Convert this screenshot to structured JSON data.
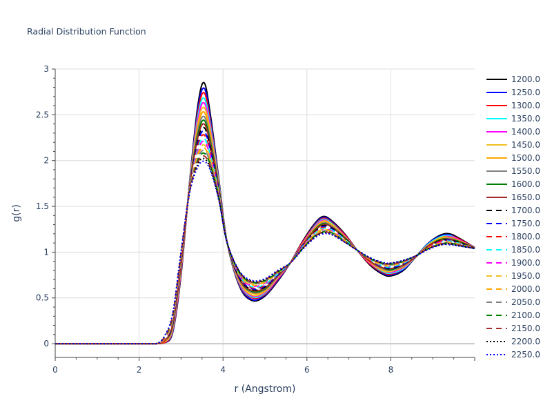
{
  "chart_data": {
    "type": "line",
    "title": "Radial Distribution Function",
    "xlabel": "r (Angstrom)",
    "ylabel": "g(r)",
    "xlim": [
      0,
      10
    ],
    "ylim": [
      -0.15,
      3
    ],
    "x_ticks": [
      0,
      2,
      4,
      6,
      8
    ],
    "x_tick_labels": [
      "0",
      "2",
      "4",
      "6",
      "8"
    ],
    "y_ticks": [
      0,
      0.5,
      1,
      1.5,
      2,
      2.5,
      3
    ],
    "y_tick_labels": [
      "0",
      "0.5",
      "1",
      "1.5",
      "2",
      "2.5",
      "3"
    ],
    "grid": true,
    "legend_position": "right",
    "x": [
      0,
      0.5,
      1,
      1.5,
      2,
      2.4,
      2.6,
      2.8,
      3.0,
      3.2,
      3.4,
      3.55,
      3.7,
      3.9,
      4.1,
      4.4,
      4.7,
      5.0,
      5.3,
      5.6,
      5.9,
      6.2,
      6.4,
      6.6,
      6.9,
      7.2,
      7.5,
      7.8,
      8.0,
      8.3,
      8.6,
      8.9,
      9.2,
      9.4,
      9.6,
      10.0
    ],
    "series": [
      {
        "name": "1200.0",
        "color": "#000000",
        "dash": "solid",
        "values": [
          0,
          0,
          0,
          0,
          0,
          0,
          0.01,
          0.12,
          0.75,
          1.75,
          2.6,
          2.85,
          2.5,
          1.8,
          1.1,
          0.62,
          0.47,
          0.52,
          0.68,
          0.88,
          1.12,
          1.32,
          1.39,
          1.34,
          1.2,
          1.02,
          0.86,
          0.76,
          0.74,
          0.8,
          0.95,
          1.1,
          1.19,
          1.2,
          1.16,
          1.05
        ]
      },
      {
        "name": "1250.0",
        "color": "#0000ff",
        "dash": "solid",
        "values": [
          0,
          0,
          0,
          0,
          0,
          0,
          0.01,
          0.13,
          0.77,
          1.74,
          2.56,
          2.79,
          2.46,
          1.78,
          1.1,
          0.63,
          0.48,
          0.53,
          0.69,
          0.88,
          1.11,
          1.31,
          1.38,
          1.33,
          1.19,
          1.02,
          0.87,
          0.77,
          0.75,
          0.81,
          0.95,
          1.1,
          1.18,
          1.19,
          1.15,
          1.05
        ]
      },
      {
        "name": "1300.0",
        "color": "#ff0000",
        "dash": "solid",
        "values": [
          0,
          0,
          0,
          0,
          0,
          0,
          0.01,
          0.14,
          0.78,
          1.73,
          2.52,
          2.74,
          2.42,
          1.77,
          1.1,
          0.64,
          0.5,
          0.54,
          0.7,
          0.88,
          1.11,
          1.3,
          1.37,
          1.32,
          1.19,
          1.02,
          0.87,
          0.78,
          0.76,
          0.82,
          0.95,
          1.09,
          1.17,
          1.18,
          1.15,
          1.05
        ]
      },
      {
        "name": "1350.0",
        "color": "#00ffff",
        "dash": "solid",
        "values": [
          0,
          0,
          0,
          0,
          0,
          0,
          0.02,
          0.15,
          0.8,
          1.73,
          2.48,
          2.68,
          2.38,
          1.76,
          1.1,
          0.65,
          0.51,
          0.55,
          0.71,
          0.88,
          1.1,
          1.29,
          1.36,
          1.31,
          1.18,
          1.02,
          0.88,
          0.79,
          0.77,
          0.82,
          0.95,
          1.09,
          1.17,
          1.18,
          1.14,
          1.05
        ]
      },
      {
        "name": "1400.0",
        "color": "#ff00ff",
        "dash": "solid",
        "values": [
          0,
          0,
          0,
          0,
          0,
          0,
          0.02,
          0.16,
          0.81,
          1.72,
          2.44,
          2.63,
          2.34,
          1.74,
          1.1,
          0.66,
          0.52,
          0.56,
          0.71,
          0.88,
          1.1,
          1.28,
          1.35,
          1.3,
          1.18,
          1.02,
          0.88,
          0.8,
          0.78,
          0.83,
          0.95,
          1.08,
          1.16,
          1.17,
          1.14,
          1.05
        ]
      },
      {
        "name": "1450.0",
        "color": "#f0c020",
        "dash": "solid",
        "values": [
          0,
          0,
          0,
          0,
          0,
          0,
          0.02,
          0.17,
          0.83,
          1.72,
          2.4,
          2.58,
          2.31,
          1.73,
          1.1,
          0.67,
          0.53,
          0.57,
          0.72,
          0.88,
          1.09,
          1.27,
          1.34,
          1.3,
          1.17,
          1.02,
          0.89,
          0.8,
          0.79,
          0.84,
          0.95,
          1.08,
          1.16,
          1.16,
          1.13,
          1.05
        ]
      },
      {
        "name": "1500.0",
        "color": "#ffa500",
        "dash": "solid",
        "values": [
          0,
          0,
          0,
          0,
          0,
          0,
          0.02,
          0.18,
          0.84,
          1.71,
          2.36,
          2.53,
          2.27,
          1.72,
          1.1,
          0.68,
          0.55,
          0.58,
          0.73,
          0.88,
          1.09,
          1.26,
          1.33,
          1.29,
          1.17,
          1.02,
          0.89,
          0.81,
          0.8,
          0.84,
          0.95,
          1.08,
          1.15,
          1.16,
          1.13,
          1.05
        ]
      },
      {
        "name": "1550.0",
        "color": "#808080",
        "dash": "solid",
        "values": [
          0,
          0,
          0,
          0,
          0,
          0,
          0.03,
          0.19,
          0.86,
          1.71,
          2.32,
          2.48,
          2.23,
          1.71,
          1.1,
          0.69,
          0.56,
          0.59,
          0.73,
          0.88,
          1.08,
          1.25,
          1.32,
          1.28,
          1.16,
          1.02,
          0.9,
          0.82,
          0.8,
          0.85,
          0.95,
          1.07,
          1.14,
          1.15,
          1.12,
          1.05
        ]
      },
      {
        "name": "1600.0",
        "color": "#008000",
        "dash": "solid",
        "values": [
          0,
          0,
          0,
          0,
          0,
          0,
          0.03,
          0.2,
          0.87,
          1.7,
          2.28,
          2.44,
          2.2,
          1.7,
          1.1,
          0.7,
          0.57,
          0.6,
          0.74,
          0.88,
          1.08,
          1.25,
          1.31,
          1.27,
          1.16,
          1.02,
          0.9,
          0.83,
          0.81,
          0.86,
          0.95,
          1.07,
          1.14,
          1.14,
          1.12,
          1.05
        ]
      },
      {
        "name": "1650.0",
        "color": "#a52a2a",
        "dash": "solid",
        "values": [
          0,
          0,
          0,
          0,
          0,
          0,
          0.03,
          0.21,
          0.88,
          1.7,
          2.25,
          2.4,
          2.17,
          1.69,
          1.1,
          0.7,
          0.58,
          0.61,
          0.74,
          0.88,
          1.08,
          1.24,
          1.3,
          1.27,
          1.15,
          1.02,
          0.9,
          0.83,
          0.82,
          0.86,
          0.95,
          1.07,
          1.13,
          1.14,
          1.11,
          1.05
        ]
      },
      {
        "name": "1700.0",
        "color": "#000000",
        "dash": "dash",
        "values": [
          0,
          0,
          0,
          0,
          0,
          0,
          0.04,
          0.22,
          0.9,
          1.69,
          2.22,
          2.36,
          2.14,
          1.68,
          1.1,
          0.71,
          0.59,
          0.62,
          0.75,
          0.88,
          1.07,
          1.23,
          1.29,
          1.26,
          1.15,
          1.02,
          0.91,
          0.84,
          0.82,
          0.87,
          0.96,
          1.06,
          1.13,
          1.13,
          1.11,
          1.04
        ]
      },
      {
        "name": "1750.0",
        "color": "#0000ff",
        "dash": "dash",
        "values": [
          0,
          0,
          0,
          0,
          0,
          0,
          0.04,
          0.23,
          0.91,
          1.69,
          2.19,
          2.32,
          2.11,
          1.67,
          1.1,
          0.72,
          0.6,
          0.63,
          0.75,
          0.88,
          1.07,
          1.22,
          1.28,
          1.25,
          1.14,
          1.02,
          0.91,
          0.84,
          0.83,
          0.87,
          0.96,
          1.06,
          1.12,
          1.13,
          1.1,
          1.04
        ]
      },
      {
        "name": "1800.0",
        "color": "#ff0000",
        "dash": "dash",
        "values": [
          0,
          0,
          0,
          0,
          0,
          0,
          0.04,
          0.24,
          0.92,
          1.68,
          2.16,
          2.28,
          2.09,
          1.66,
          1.1,
          0.73,
          0.61,
          0.64,
          0.76,
          0.88,
          1.06,
          1.22,
          1.27,
          1.24,
          1.14,
          1.02,
          0.91,
          0.85,
          0.84,
          0.88,
          0.96,
          1.06,
          1.12,
          1.12,
          1.1,
          1.04
        ]
      },
      {
        "name": "1850.0",
        "color": "#00ffff",
        "dash": "dash",
        "values": [
          0,
          0,
          0,
          0,
          0,
          0,
          0.05,
          0.25,
          0.93,
          1.68,
          2.13,
          2.24,
          2.06,
          1.65,
          1.1,
          0.74,
          0.62,
          0.65,
          0.76,
          0.88,
          1.06,
          1.21,
          1.26,
          1.24,
          1.14,
          1.02,
          0.92,
          0.85,
          0.84,
          0.88,
          0.96,
          1.05,
          1.11,
          1.12,
          1.1,
          1.04
        ]
      },
      {
        "name": "1900.0",
        "color": "#ff00ff",
        "dash": "dash",
        "values": [
          0,
          0,
          0,
          0,
          0,
          0,
          0.05,
          0.26,
          0.94,
          1.67,
          2.1,
          2.21,
          2.04,
          1.64,
          1.1,
          0.74,
          0.63,
          0.66,
          0.77,
          0.88,
          1.06,
          1.2,
          1.25,
          1.23,
          1.13,
          1.02,
          0.92,
          0.86,
          0.85,
          0.89,
          0.96,
          1.05,
          1.11,
          1.11,
          1.09,
          1.04
        ]
      },
      {
        "name": "1950.0",
        "color": "#f0c020",
        "dash": "dash",
        "values": [
          0,
          0,
          0,
          0,
          0,
          0,
          0.05,
          0.27,
          0.95,
          1.67,
          2.07,
          2.17,
          2.01,
          1.63,
          1.1,
          0.75,
          0.64,
          0.67,
          0.77,
          0.88,
          1.05,
          1.2,
          1.25,
          1.22,
          1.13,
          1.02,
          0.92,
          0.86,
          0.85,
          0.89,
          0.96,
          1.05,
          1.1,
          1.11,
          1.09,
          1.04
        ]
      },
      {
        "name": "2000.0",
        "color": "#ffa500",
        "dash": "dash",
        "values": [
          0,
          0,
          0,
          0,
          0,
          0,
          0.06,
          0.28,
          0.96,
          1.66,
          2.05,
          2.14,
          1.99,
          1.62,
          1.1,
          0.76,
          0.65,
          0.68,
          0.78,
          0.88,
          1.05,
          1.19,
          1.24,
          1.22,
          1.12,
          1.02,
          0.93,
          0.87,
          0.86,
          0.89,
          0.96,
          1.05,
          1.1,
          1.1,
          1.09,
          1.04
        ]
      },
      {
        "name": "2050.0",
        "color": "#808080",
        "dash": "dash",
        "values": [
          0,
          0,
          0,
          0,
          0,
          0,
          0.06,
          0.29,
          0.97,
          1.66,
          2.02,
          2.11,
          1.97,
          1.61,
          1.1,
          0.76,
          0.66,
          0.68,
          0.78,
          0.88,
          1.05,
          1.18,
          1.23,
          1.21,
          1.12,
          1.02,
          0.93,
          0.87,
          0.86,
          0.9,
          0.96,
          1.04,
          1.09,
          1.1,
          1.08,
          1.04
        ]
      },
      {
        "name": "2100.0",
        "color": "#008000",
        "dash": "dash",
        "values": [
          0,
          0,
          0,
          0,
          0,
          0,
          0.07,
          0.3,
          0.98,
          1.65,
          2.0,
          2.08,
          1.95,
          1.6,
          1.1,
          0.77,
          0.67,
          0.69,
          0.78,
          0.88,
          1.04,
          1.18,
          1.22,
          1.21,
          1.12,
          1.02,
          0.93,
          0.88,
          0.87,
          0.9,
          0.96,
          1.04,
          1.09,
          1.1,
          1.08,
          1.04
        ]
      },
      {
        "name": "2150.0",
        "color": "#a52a2a",
        "dash": "dash",
        "values": [
          0,
          0,
          0,
          0,
          0,
          0,
          0.07,
          0.31,
          0.99,
          1.65,
          1.98,
          2.05,
          1.93,
          1.59,
          1.1,
          0.78,
          0.67,
          0.7,
          0.79,
          0.88,
          1.04,
          1.17,
          1.22,
          1.2,
          1.11,
          1.02,
          0.93,
          0.88,
          0.87,
          0.9,
          0.96,
          1.04,
          1.09,
          1.09,
          1.08,
          1.04
        ]
      },
      {
        "name": "2200.0",
        "color": "#000000",
        "dash": "dot",
        "values": [
          0,
          0,
          0,
          0,
          0,
          0,
          0.08,
          0.32,
          1.0,
          1.64,
          1.96,
          2.02,
          1.91,
          1.58,
          1.1,
          0.78,
          0.68,
          0.7,
          0.79,
          0.88,
          1.04,
          1.17,
          1.21,
          1.19,
          1.11,
          1.02,
          0.94,
          0.88,
          0.88,
          0.91,
          0.96,
          1.04,
          1.08,
          1.09,
          1.07,
          1.04
        ]
      },
      {
        "name": "2250.0",
        "color": "#0000ff",
        "dash": "dot",
        "values": [
          0,
          0,
          0,
          0,
          0,
          0,
          0.08,
          0.33,
          1.01,
          1.64,
          1.93,
          1.99,
          1.89,
          1.57,
          1.1,
          0.79,
          0.69,
          0.71,
          0.8,
          0.88,
          1.03,
          1.16,
          1.2,
          1.19,
          1.11,
          1.02,
          0.94,
          0.89,
          0.88,
          0.91,
          0.96,
          1.03,
          1.08,
          1.08,
          1.07,
          1.04
        ]
      }
    ]
  }
}
